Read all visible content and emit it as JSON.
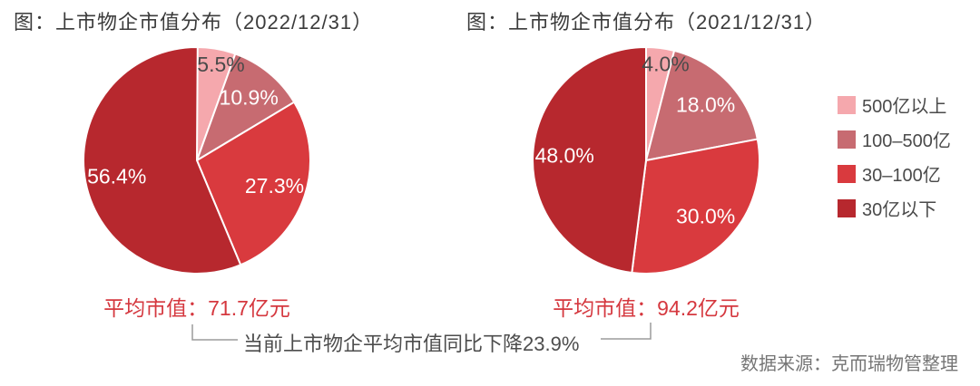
{
  "chart_data": [
    {
      "type": "pie",
      "title": "图：上市物企市值分布（2022/12/31）",
      "date": "2022/12/31",
      "categories": [
        "500亿以上",
        "100–500亿",
        "30–100亿",
        "30亿以下"
      ],
      "values": [
        5.5,
        10.9,
        27.3,
        56.4
      ],
      "labels": [
        "5.5%",
        "10.9%",
        "27.3%",
        "56.4%"
      ],
      "colors": [
        "#F5A8AD",
        "#C76B71",
        "#D93A3E",
        "#B7282E"
      ],
      "label_colors": [
        "#4a4a4a",
        "#ffffff",
        "#ffffff",
        "#ffffff"
      ],
      "start_angle": "top",
      "direction": "clockwise",
      "caption": "平均市值：71.7亿元"
    },
    {
      "type": "pie",
      "title": "图：上市物企市值分布（2021/12/31）",
      "date": "2021/12/31",
      "categories": [
        "500亿以上",
        "100–500亿",
        "30–100亿",
        "30亿以下"
      ],
      "values": [
        4.0,
        18.0,
        30.0,
        48.0
      ],
      "labels": [
        "4.0%",
        "18.0%",
        "30.0%",
        "48.0%"
      ],
      "colors": [
        "#F5A8AD",
        "#C76B71",
        "#D93A3E",
        "#B7282E"
      ],
      "label_colors": [
        "#4a4a4a",
        "#ffffff",
        "#ffffff",
        "#ffffff"
      ],
      "start_angle": "top",
      "direction": "clockwise",
      "caption": "平均市值：94.2亿元"
    }
  ],
  "legend": {
    "position": "right",
    "items": [
      {
        "label": "500亿以上",
        "color": "#F5A8AD"
      },
      {
        "label": "100–500亿",
        "color": "#C76B71"
      },
      {
        "label": "30–100亿",
        "color": "#D93A3E"
      },
      {
        "label": "30亿以下",
        "color": "#B7282E"
      }
    ]
  },
  "annotation": {
    "text": "当前上市物企平均市值同比下降23.9%",
    "bracket_color": "#9b9b9b"
  },
  "source": {
    "text": "数据来源：克而瑞物管整理"
  },
  "accent_colors": {
    "caption_red": "#d5383f"
  }
}
